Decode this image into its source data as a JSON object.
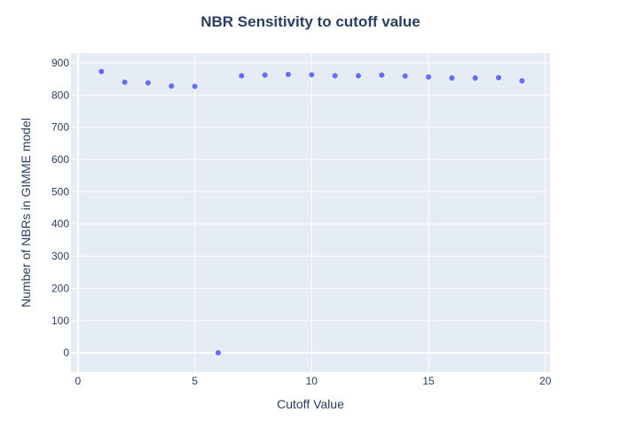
{
  "chart_data": {
    "type": "scatter",
    "title": "NBR Sensitivity to cutoff value",
    "xlabel": "Cutoff Value",
    "ylabel": "Number of NBRs in GIMME model",
    "xlim": [
      -0.3,
      20.2
    ],
    "ylim": [
      -60,
      930
    ],
    "xticks": [
      0,
      5,
      10,
      15,
      20
    ],
    "yticks": [
      0,
      100,
      200,
      300,
      400,
      500,
      600,
      700,
      800,
      900
    ],
    "grid": true,
    "legend": "none",
    "x": [
      1,
      2,
      3,
      4,
      5,
      6,
      7,
      8,
      9,
      10,
      11,
      12,
      13,
      14,
      15,
      16,
      17,
      18,
      19
    ],
    "y": [
      873,
      840,
      838,
      828,
      827,
      0,
      860,
      862,
      864,
      863,
      860,
      860,
      862,
      859,
      856,
      853,
      853,
      854,
      844
    ],
    "colors": {
      "marker": "#636efa",
      "plot_bg": "#e5ecf6",
      "grid": "#ffffff",
      "text": "#2a3f5f"
    }
  }
}
